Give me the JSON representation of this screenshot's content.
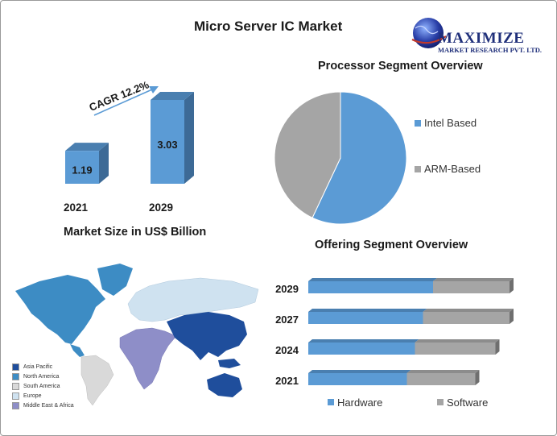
{
  "page": {
    "title": "Micro Server IC Market",
    "logo": {
      "name": "MAXIMIZE",
      "sub": "MARKET RESEARCH PVT. LTD."
    }
  },
  "chart_data": [
    {
      "type": "bar",
      "title": "Market Size in US$ Billion",
      "categories": [
        "2021",
        "2029"
      ],
      "values": [
        1.19,
        3.03
      ],
      "value_labels": [
        "1.19",
        "3.03"
      ],
      "annotation": "CAGR 12.2%",
      "color": "#5b9bd5",
      "dark_color": "#3d6a96"
    },
    {
      "type": "pie",
      "title": "Processor Segment Overview",
      "labels": [
        "Intel Based",
        "ARM-Based"
      ],
      "values": [
        57,
        43
      ],
      "colors": [
        "#5b9bd5",
        "#a5a5a5"
      ],
      "legend": "right"
    },
    {
      "type": "bar",
      "orientation": "horizontal",
      "stacked": true,
      "title": "Offering Segment Overview",
      "categories": [
        "2029",
        "2027",
        "2024",
        "2021"
      ],
      "series": [
        {
          "name": "Hardware",
          "values": [
            62,
            57,
            53,
            49
          ],
          "color": "#5b9bd5"
        },
        {
          "name": "Software",
          "values": [
            38,
            43,
            40,
            34
          ],
          "color": "#a5a5a5"
        }
      ],
      "xlim": [
        0,
        100
      ],
      "legend": "bottom"
    }
  ],
  "map": {
    "legend": [
      {
        "label": "Asia Pacific",
        "color": "#1f4e9c"
      },
      {
        "label": "North America",
        "color": "#3d8cc4"
      },
      {
        "label": "South America",
        "color": "#d9d9d9"
      },
      {
        "label": "Europe",
        "color": "#cfe2f0"
      },
      {
        "label": "Middle East & Africa",
        "color": "#8e8ec8"
      }
    ]
  }
}
